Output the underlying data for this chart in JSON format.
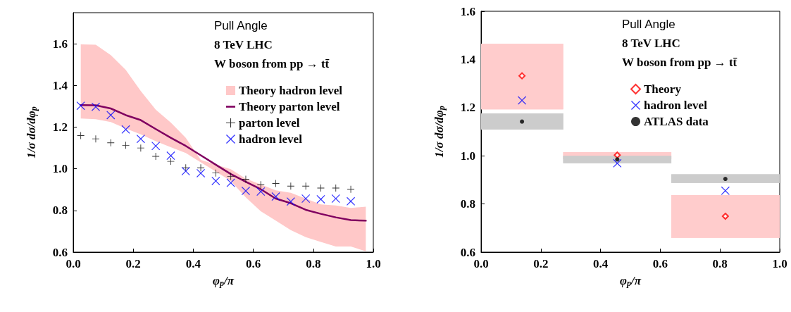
{
  "chart_data": [
    {
      "type": "scatter",
      "title": "Pull Angle",
      "subtitle": "8 TeV LHC",
      "annotations": [
        "W boson from pp → tt̄"
      ],
      "xlabel": "φ$_{p}$/π",
      "ylabel": "1/σ dσ/dφ$_{p}$",
      "legend": "top right",
      "xlim": [
        0,
        1
      ],
      "ylim": [
        0.6,
        1.75
      ],
      "xticks": [
        {
          "value": 0,
          "label": "0.0"
        },
        {
          "value": 0.2,
          "label": "0.2"
        },
        {
          "value": 0.4,
          "label": "0.4"
        },
        {
          "value": 0.6,
          "label": "0.6"
        },
        {
          "value": 0.8,
          "label": "0.8"
        },
        {
          "value": 1,
          "label": "1.0"
        }
      ],
      "yticks": [
        {
          "value": 0.6,
          "label": "0.6"
        },
        {
          "value": 0.8,
          "label": "0.8"
        },
        {
          "value": 1,
          "label": "1.0"
        },
        {
          "value": 1.2,
          "label": "1.2"
        },
        {
          "value": 1.4,
          "label": "1.4"
        },
        {
          "value": 1.6,
          "label": "1.6"
        }
      ],
      "series": [
        {
          "name": "Theory hadron level",
          "type": "area",
          "color": "#ffc8c8",
          "values": [
            null,
            null,
            null,
            null,
            null,
            null,
            null,
            null,
            null,
            null,
            null,
            null,
            null,
            null,
            null,
            null,
            null,
            null,
            null,
            null
          ],
          "x": [
            0.025,
            0.075,
            0.125,
            0.175,
            0.225,
            0.275,
            0.325,
            0.375,
            0.425,
            0.475,
            0.525,
            0.575,
            0.625,
            0.675,
            0.725,
            0.775,
            0.825,
            0.875,
            0.925,
            0.975
          ],
          "upper": [
            1.598,
            1.596,
            1.546,
            1.475,
            1.374,
            1.284,
            1.222,
            1.149,
            1.043,
            1.02,
            0.998,
            0.953,
            0.925,
            0.897,
            0.885,
            0.857,
            0.829,
            0.824,
            0.812,
            0.818
          ],
          "lower": [
            1.242,
            1.238,
            1.225,
            1.194,
            1.166,
            1.133,
            1.104,
            1.076,
            1.031,
            0.987,
            0.942,
            0.863,
            0.796,
            0.751,
            0.706,
            0.672,
            0.649,
            0.627,
            0.627,
            0.604
          ]
        },
        {
          "name": "Theory parton level",
          "type": "line",
          "color": "#800060",
          "marker": "none",
          "line_style": "solid",
          "x": [
            0.025,
            0.075,
            0.125,
            0.175,
            0.225,
            0.275,
            0.325,
            0.375,
            0.425,
            0.475,
            0.525,
            0.575,
            0.625,
            0.675,
            0.725,
            0.775,
            0.825,
            0.875,
            0.925,
            0.975
          ],
          "values": [
            1.306,
            1.305,
            1.29,
            1.258,
            1.234,
            1.191,
            1.149,
            1.11,
            1.065,
            1.02,
            0.975,
            0.938,
            0.902,
            0.857,
            0.835,
            0.803,
            0.784,
            0.767,
            0.754,
            0.751
          ]
        },
        {
          "name": "parton level",
          "type": "scatter",
          "color": "#000000",
          "marker": "plus",
          "x": [
            0.025,
            0.075,
            0.125,
            0.175,
            0.225,
            0.275,
            0.325,
            0.375,
            0.425,
            0.475,
            0.525,
            0.575,
            0.625,
            0.675,
            0.725,
            0.775,
            0.825,
            0.875,
            0.925
          ],
          "values": [
            1.16,
            1.144,
            1.125,
            1.113,
            1.1,
            1.06,
            1.036,
            1.005,
            1.005,
            0.98,
            0.964,
            0.95,
            0.924,
            0.93,
            0.917,
            0.917,
            0.908,
            0.908,
            0.902
          ]
        },
        {
          "name": "hadron level",
          "type": "scatter",
          "color": "#0000ff",
          "marker": "cross",
          "x": [
            0.025,
            0.075,
            0.125,
            0.175,
            0.225,
            0.275,
            0.325,
            0.375,
            0.425,
            0.475,
            0.525,
            0.575,
            0.625,
            0.675,
            0.725,
            0.775,
            0.825,
            0.875,
            0.925
          ],
          "values": [
            1.303,
            1.298,
            1.258,
            1.189,
            1.144,
            1.11,
            1.063,
            0.989,
            0.979,
            0.942,
            0.933,
            0.894,
            0.891,
            0.867,
            0.843,
            0.857,
            0.854,
            0.857,
            0.844
          ]
        }
      ]
    },
    {
      "type": "scatter",
      "title": "Pull Angle",
      "subtitle": "8 TeV LHC",
      "annotations": [
        "W boson from pp → tt̄"
      ],
      "xlabel": "φ$_{p}$/π",
      "ylabel": "1/σ dσ/dφ$_{p}$",
      "legend": "top right",
      "xlim": [
        0,
        1
      ],
      "ylim": [
        0.6,
        1.6
      ],
      "xticks": [
        {
          "value": 0,
          "label": "0.0"
        },
        {
          "value": 0.2,
          "label": "0.2"
        },
        {
          "value": 0.4,
          "label": "0.4"
        },
        {
          "value": 0.6,
          "label": "0.6"
        },
        {
          "value": 0.8,
          "label": "0.8"
        },
        {
          "value": 1,
          "label": "1.0"
        }
      ],
      "yticks": [
        {
          "value": 0.6,
          "label": "0.6"
        },
        {
          "value": 0.8,
          "label": "0.8"
        },
        {
          "value": 1,
          "label": "1.0"
        },
        {
          "value": 1.2,
          "label": "1.2"
        },
        {
          "value": 1.4,
          "label": "1.4"
        },
        {
          "value": 1.6,
          "label": "1.6"
        }
      ],
      "series": [
        {
          "name": "Theory",
          "color": "#ff0000",
          "marker": "diamond",
          "x": [
            0.137,
            0.456,
            0.818
          ],
          "values": [
            1.332,
            1.003,
            0.749
          ],
          "errors": [
            [
              1.193,
              1.465
            ],
            [
              0.986,
              1.015
            ],
            [
              0.659,
              0.837
            ]
          ],
          "xerrors": [
            [
              0,
              0.275
            ],
            [
              0.275,
              0.637
            ],
            [
              0.637,
              1
            ]
          ]
        },
        {
          "name": "hadron level",
          "color": "#0000ff",
          "marker": "cross",
          "x": [
            0.137,
            0.456,
            0.818
          ],
          "values": [
            1.23,
            0.969,
            0.855
          ]
        },
        {
          "name": "ATLAS data",
          "color": "#000000",
          "marker": "circle",
          "x": [
            0.137,
            0.456,
            0.818
          ],
          "values": [
            1.142,
            0.985,
            0.904
          ],
          "errors": [
            [
              1.109,
              1.176
            ],
            [
              0.969,
              1.0
            ],
            [
              0.887,
              0.923
            ]
          ],
          "xerrors": [
            [
              0,
              0.275
            ],
            [
              0.275,
              0.637
            ],
            [
              0.637,
              1
            ]
          ]
        }
      ]
    }
  ]
}
